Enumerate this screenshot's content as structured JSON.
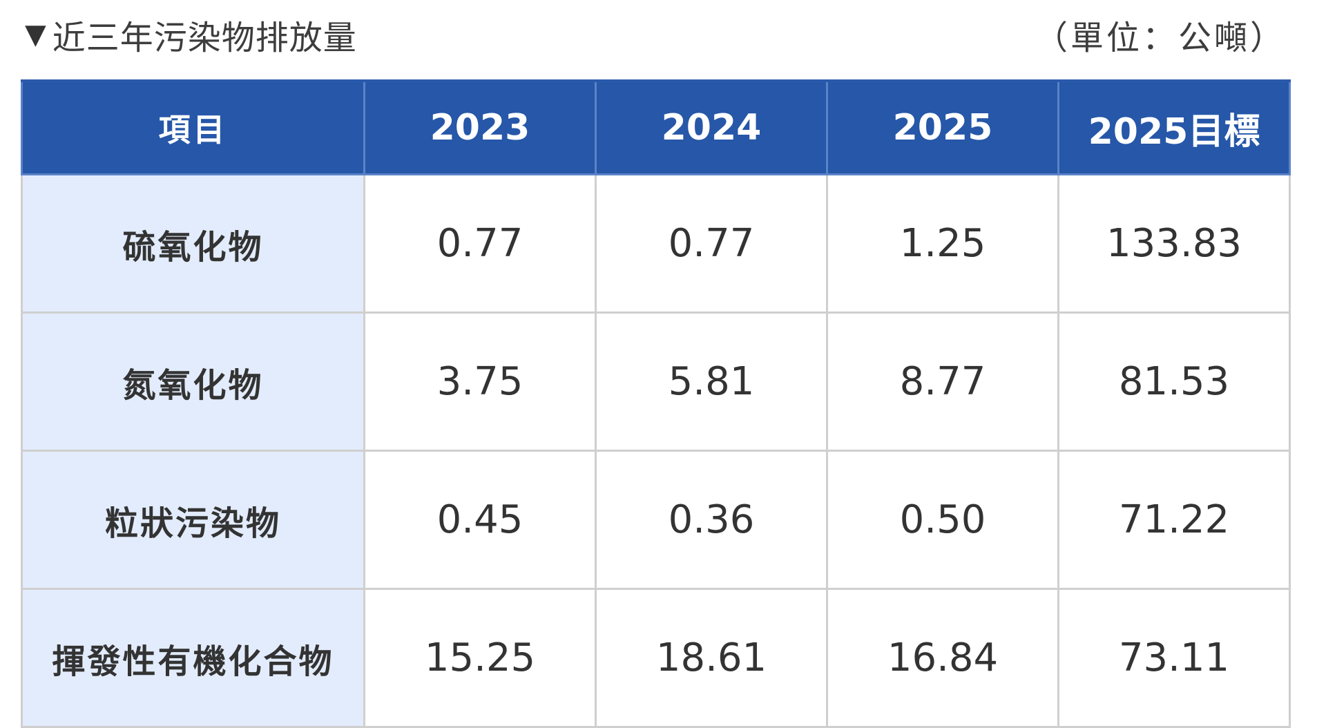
{
  "title": "近三年污染物排放量",
  "title_marker": "▼",
  "unit": "（單位：公噸）",
  "table": {
    "headers": [
      "項目",
      "2023",
      "2024",
      "2025",
      "2025目標"
    ],
    "rows": [
      {
        "item": "硫氧化物",
        "values": [
          "0.77",
          "0.77",
          "1.25",
          "133.83"
        ]
      },
      {
        "item": "氮氧化物",
        "values": [
          "3.75",
          "5.81",
          "8.77",
          "81.53"
        ]
      },
      {
        "item": "粒狀污染物",
        "values": [
          "0.45",
          "0.36",
          "0.50",
          "71.22"
        ]
      },
      {
        "item": "揮發性有機化合物",
        "values": [
          "15.25",
          "18.61",
          "16.84",
          "73.11"
        ]
      }
    ]
  },
  "colors": {
    "header_bg": "#2657a8",
    "item_bg": "#e3ecfc",
    "border": "#cfcfcf"
  }
}
